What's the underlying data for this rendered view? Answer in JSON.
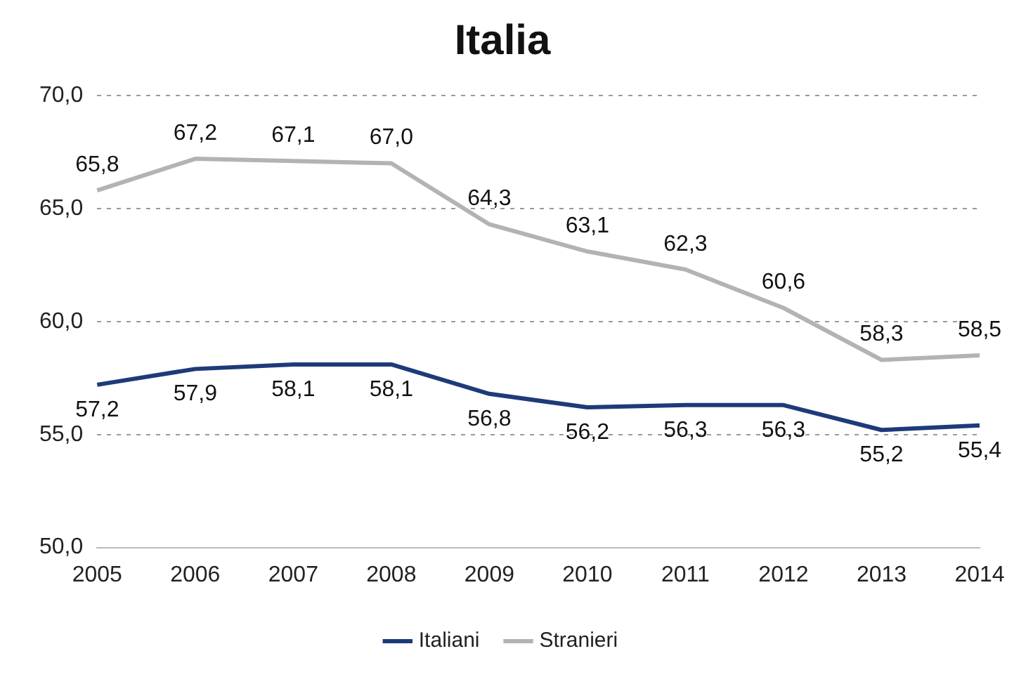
{
  "chart_data": {
    "type": "line",
    "title": "Italia",
    "categories": [
      "2005",
      "2006",
      "2007",
      "2008",
      "2009",
      "2010",
      "2011",
      "2012",
      "2013",
      "2014"
    ],
    "series": [
      {
        "name": "Italiani",
        "color": "#1f3a7a",
        "values": [
          57.2,
          57.9,
          58.1,
          58.1,
          56.8,
          56.2,
          56.3,
          56.3,
          55.2,
          55.4
        ],
        "value_labels": [
          "57,2",
          "57,9",
          "58,1",
          "58,1",
          "56,8",
          "56,2",
          "56,3",
          "56,3",
          "55,2",
          "55,4"
        ]
      },
      {
        "name": "Stranieri",
        "color": "#b3b3b3",
        "values": [
          65.8,
          67.2,
          67.1,
          67.0,
          64.3,
          63.1,
          62.3,
          60.6,
          58.3,
          58.5
        ],
        "value_labels": [
          "65,8",
          "67,2",
          "67,1",
          "67,0",
          "64,3",
          "63,1",
          "62,3",
          "60,6",
          "58,3",
          "58,5"
        ]
      }
    ],
    "ylim": [
      50,
      70
    ],
    "yticks": [
      {
        "value": 50,
        "label": "50,0"
      },
      {
        "value": 55,
        "label": "55,0"
      },
      {
        "value": 60,
        "label": "60,0"
      },
      {
        "value": 65,
        "label": "65,0"
      },
      {
        "value": 70,
        "label": "70,0"
      }
    ],
    "grid": "y",
    "legend": "bottom",
    "marker": "none",
    "line_style": "solid"
  }
}
